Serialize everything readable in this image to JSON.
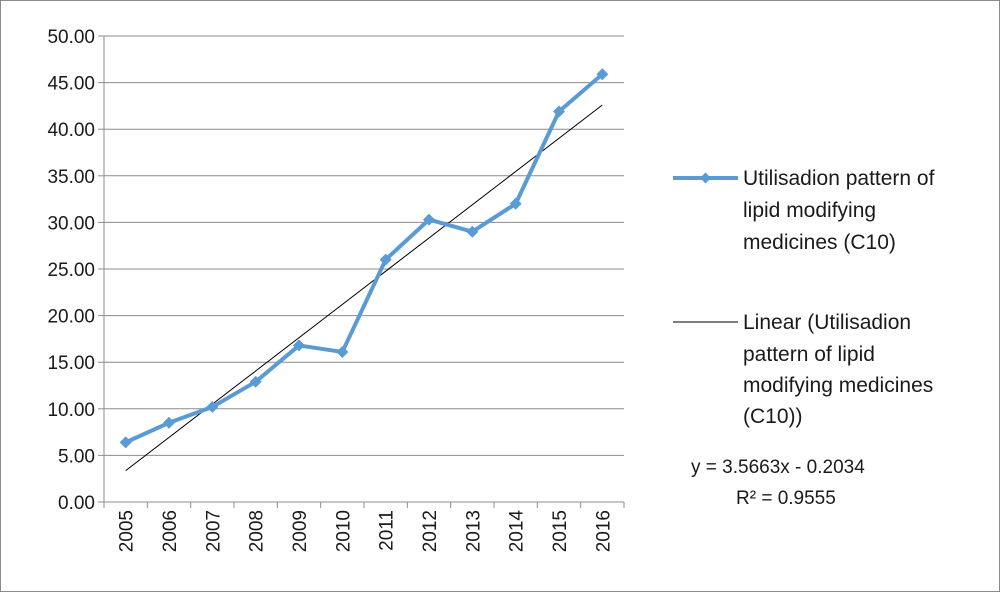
{
  "chart_data": {
    "type": "line",
    "categories": [
      "2005",
      "2006",
      "2007",
      "2008",
      "2009",
      "2010",
      "2011",
      "2012",
      "2013",
      "2014",
      "2015",
      "2016"
    ],
    "series": [
      {
        "name": "Utilisadion pattern of lipid modifying medicines (C10)",
        "values": [
          6.4,
          8.5,
          10.2,
          12.9,
          16.8,
          16.1,
          26.0,
          30.3,
          29.0,
          32.0,
          41.9,
          45.9
        ],
        "color": "#5b9bd5",
        "marker": "diamond"
      }
    ],
    "trendline": {
      "name": "Linear (Utilisadion pattern of lipid modifying medicines (C10))",
      "type": "linear",
      "slope": 3.5663,
      "intercept": -0.2034,
      "equation": "y = 3.5663x - 0.2034",
      "r_squared": "R² = 0.9555",
      "color": "#000000"
    },
    "y_ticks": [
      "0.00",
      "5.00",
      "10.00",
      "15.00",
      "20.00",
      "25.00",
      "30.00",
      "35.00",
      "40.00",
      "45.00",
      "50.00"
    ],
    "ylim": [
      0,
      50
    ],
    "grid": "horizontal",
    "legend_position": "right"
  },
  "legend": {
    "series_label_lines": [
      "Utilisadion pattern of",
      "lipid modifying",
      "medicines (C10)"
    ],
    "trend_label_lines": [
      "Linear (Utilisadion",
      "pattern of lipid",
      "modifying medicines",
      "(C10))"
    ]
  }
}
